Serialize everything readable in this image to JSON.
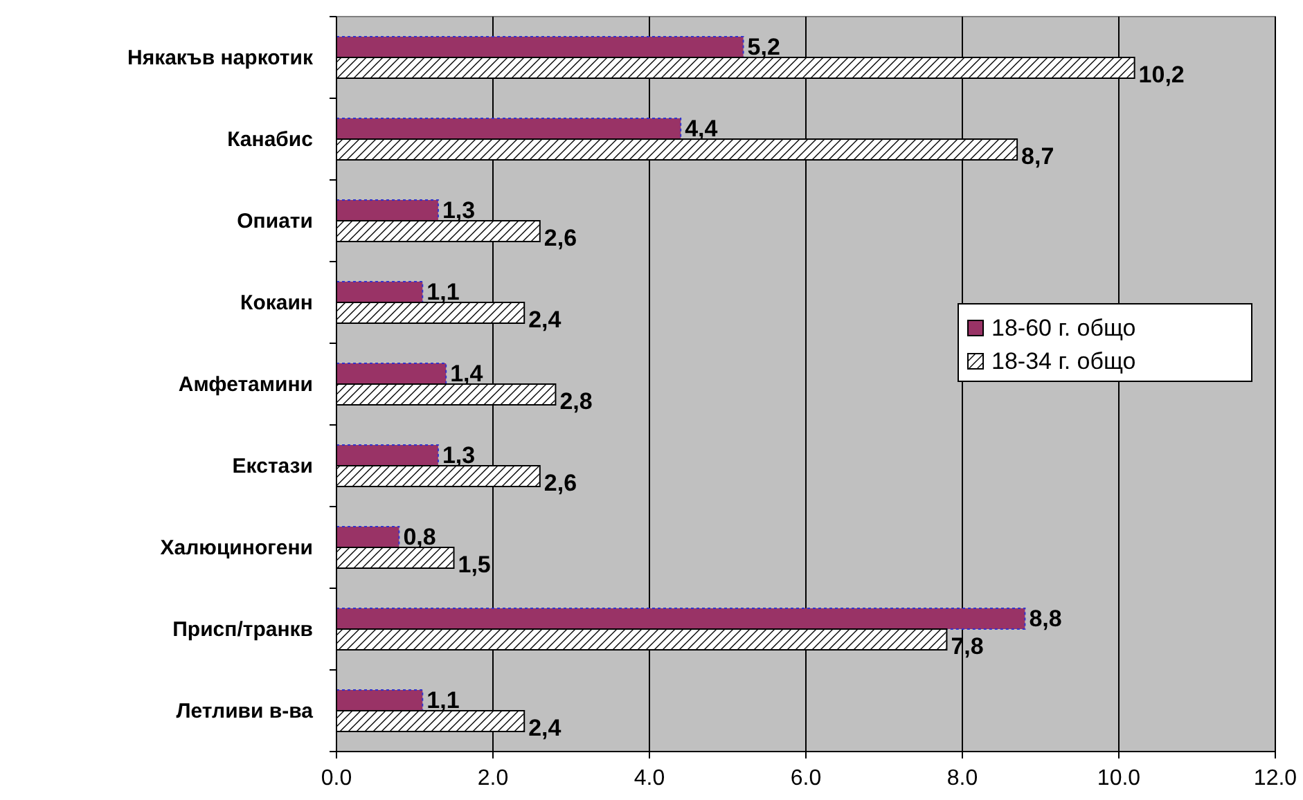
{
  "chart_data": {
    "type": "bar",
    "orientation": "horizontal",
    "categories": [
      "Някакъв наркотик",
      "Канабис",
      "Опиати",
      "Кокаин",
      "Амфетамини",
      "Екстази",
      "Халюциногени",
      "Присп/транкв",
      "Летливи в-ва"
    ],
    "series": [
      {
        "name": "18-60 г. общо",
        "color": "#993366",
        "values": [
          5.2,
          4.4,
          1.3,
          1.1,
          1.4,
          1.3,
          0.8,
          8.8,
          1.1
        ],
        "value_labels": [
          "5,2",
          "4,4",
          "1,3",
          "1,1",
          "1,4",
          "1,3",
          "0,8",
          "8,8",
          "1,1"
        ]
      },
      {
        "name": "18-34 г. общо",
        "color": "#ffffff",
        "values": [
          10.2,
          8.7,
          2.6,
          2.4,
          2.8,
          2.6,
          1.5,
          7.8,
          2.4
        ],
        "value_labels": [
          "10,2",
          "8,7",
          "2,6",
          "2,4",
          "2,8",
          "2,6",
          "1,5",
          "7,8",
          "2,4"
        ]
      }
    ],
    "xlim": [
      0,
      12
    ],
    "xticks": [
      {
        "value": 0,
        "label": "0.0"
      },
      {
        "value": 2,
        "label": "2.0"
      },
      {
        "value": 4,
        "label": "4.0"
      },
      {
        "value": 6,
        "label": "6.0"
      },
      {
        "value": 8,
        "label": "8.0"
      },
      {
        "value": 10,
        "label": "10.0"
      },
      {
        "value": 12,
        "label": "12.0"
      }
    ],
    "grid": "x",
    "legend": "right"
  }
}
